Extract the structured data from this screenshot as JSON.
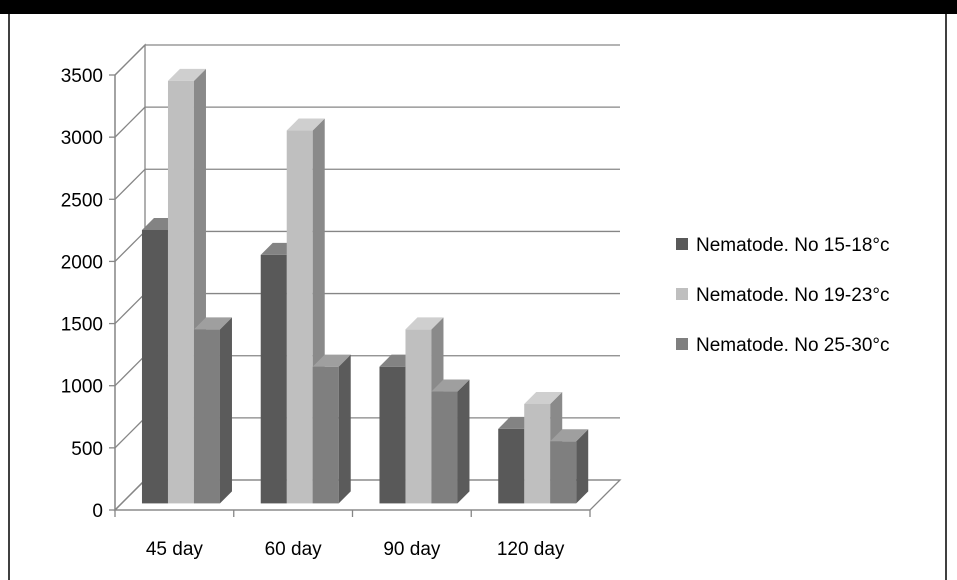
{
  "chart_data": {
    "type": "bar",
    "style": "3d-clustered-column",
    "categories": [
      "45 day",
      "60 day",
      "90 day",
      "120 day"
    ],
    "series": [
      {
        "name": "Nematode. No 15-18°c",
        "values": [
          2200,
          2000,
          1100,
          600
        ],
        "color": "#595959"
      },
      {
        "name": "Nematode. No 19-23°c",
        "values": [
          3400,
          3000,
          1400,
          800
        ],
        "color": "#bfbfbf"
      },
      {
        "name": "Nematode. No 25-30°c",
        "values": [
          1400,
          1100,
          900,
          500
        ],
        "color": "#7f7f7f"
      }
    ],
    "yticks": [
      "0",
      "500",
      "1000",
      "1500",
      "2000",
      "2500",
      "3000",
      "3500"
    ],
    "ylim": [
      0,
      3500
    ],
    "grid": true,
    "legend_position": "right",
    "title": "",
    "xlabel": "",
    "ylabel": ""
  }
}
